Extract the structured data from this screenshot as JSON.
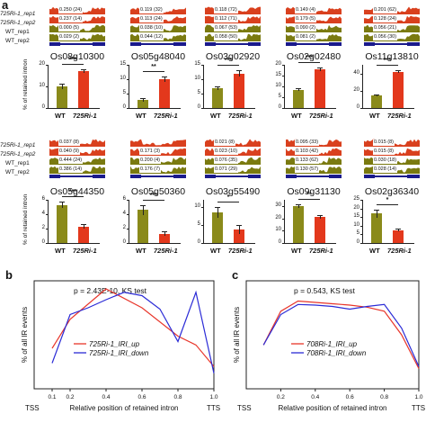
{
  "figure": {
    "panel_a_label": "a",
    "panel_b_label": "b",
    "panel_c_label": "c",
    "bar_ylabel": "% of retained intron",
    "line_ylabel": "% of all IR events",
    "xlabel": "Relative position of retained intron",
    "tss_label": "TSS",
    "tts_label": "TTS",
    "wt_label": "WT",
    "mut_label": "725Ri-1"
  },
  "track_labels_row1": [
    "725Ri-1_rep1",
    "725Ri-1_rep2",
    "WT_rep1",
    "WT_rep2"
  ],
  "track_labels_row2": [
    "725Ri-1_rep1",
    "725Ri-1_rep2",
    "WT_rep1",
    "WT_rep2"
  ],
  "genes": [
    {
      "name": "Os08g10300",
      "tags": [
        "0.250 (24)",
        "0.237 (14)",
        "0.000 (5)",
        "0.029 (2)"
      ],
      "wt": 10,
      "mut": 17,
      "wt_err": 1.2,
      "mut_err": 0.8,
      "ymax": 20,
      "ticks": [
        "0",
        "10",
        "20"
      ],
      "sig": "***"
    },
    {
      "name": "Os05g48040",
      "tags": [
        "0.119 (32)",
        "0.113 (24)",
        "0.038 (10)",
        "0.044 (12)"
      ],
      "wt": 2.8,
      "mut": 10,
      "wt_err": 0.6,
      "mut_err": 0.8,
      "ymax": 15,
      "ticks": [
        "0",
        "5",
        "10",
        "15"
      ],
      "sig": "**"
    },
    {
      "name": "Os03g02920",
      "tags": [
        "0.118 (72)",
        "0.112 (71)",
        "0.067 (53)",
        "0.058 (50)"
      ],
      "wt": 7,
      "mut": 12,
      "wt_err": 0.6,
      "mut_err": 1.2,
      "ymax": 15,
      "ticks": [
        "0",
        "5",
        "10",
        "15"
      ],
      "sig": "***"
    },
    {
      "name": "Os02g02480",
      "tags": [
        "0.149 (4)",
        "0.179 (5)",
        "0.090 (2)",
        "0.081 (2)"
      ],
      "wt": 8.5,
      "mut": 18,
      "wt_err": 0.5,
      "mut_err": 0.8,
      "ymax": 20,
      "ticks": [
        "0",
        "5",
        "10",
        "15",
        "20"
      ],
      "sig": "***"
    },
    {
      "name": "Os11g13810",
      "tags": [
        "0.201 (62)",
        "0.128 (24)",
        "0.056 (21)",
        "0.056 (30)"
      ],
      "wt": 15,
      "mut": 42,
      "wt_err": 1,
      "mut_err": 1.5,
      "ymax": 50,
      "ticks": [
        "0",
        "20",
        "40"
      ],
      "sig": "***"
    },
    {
      "name": "Os05g44350",
      "tags": [
        "0.037 (8)",
        "0.040 (9)",
        "0.444 (24)",
        "0.386 (14)"
      ],
      "wt": 5.3,
      "mut": 2.3,
      "wt_err": 0.4,
      "mut_err": 0.3,
      "ymax": 6,
      "ticks": [
        "0",
        "2",
        "4",
        "6"
      ],
      "sig": "***"
    },
    {
      "name": "Os05g50360",
      "tags": [
        "",
        "0.171 (3)",
        "0.200 (4)",
        "0.176 (7)"
      ],
      "wt": 4.6,
      "mut": 1.3,
      "wt_err": 0.7,
      "mut_err": 0.3,
      "ymax": 6,
      "ticks": [
        "0",
        "2",
        "4",
        "6"
      ],
      "sig": "***"
    },
    {
      "name": "Os03g55490",
      "tags": [
        "0.021 (8)",
        "0.023 (10)",
        "0.076 (35)",
        "0.071 (29)"
      ],
      "wt": 8.5,
      "mut": 3.7,
      "wt_err": 1.5,
      "mut_err": 1.2,
      "ymax": 12,
      "ticks": [
        "0",
        "5",
        "10"
      ],
      "sig": "*"
    },
    {
      "name": "Os09g31130",
      "tags": [
        "0.095 (33)",
        "0.103 (42)",
        "0.133 (62)",
        "0.130 (57)"
      ],
      "wt": 30,
      "mut": 21,
      "wt_err": 1.5,
      "mut_err": 1.5,
      "ymax": 35,
      "ticks": [
        "0",
        "10",
        "20",
        "30"
      ],
      "sig": "**"
    },
    {
      "name": "Os02g36340",
      "tags": [
        "0.015 (8)",
        "0.015 (8)",
        "0.030 (18)",
        "0.028 (14)"
      ],
      "wt": 17,
      "mut": 7.5,
      "wt_err": 2.5,
      "mut_err": 0.8,
      "ymax": 25,
      "ticks": [
        "0",
        "5",
        "10",
        "15",
        "20",
        "25"
      ],
      "sig": "*"
    }
  ],
  "chart_data": [
    {
      "type": "line",
      "panel": "b",
      "title": "p = 2.43E-10, KS test",
      "xlabel": "Relative position of retained intron",
      "ylabel": "% of all IR events",
      "xlim": [
        0,
        1
      ],
      "x_tick_labels": [
        "0.1",
        "0.2",
        "0.4",
        "0.6",
        "0.8",
        "1.0"
      ],
      "series": [
        {
          "name": "725Ri-1_IRI_up",
          "color": "#e8352a",
          "x": [
            0.1,
            0.2,
            0.4,
            0.6,
            0.8,
            0.9,
            1.0
          ],
          "y": [
            6.0,
            10.3,
            14.8,
            12.0,
            7.8,
            6.5,
            3.3
          ]
        },
        {
          "name": "725Ri-1_IRI_down",
          "color": "#2b2bd6",
          "x": [
            0.1,
            0.2,
            0.3,
            0.4,
            0.5,
            0.6,
            0.7,
            0.8,
            0.9,
            1.0
          ],
          "y": [
            3.8,
            11.0,
            12.0,
            13.2,
            14.3,
            13.8,
            11.8,
            7.0,
            14.3,
            2.3
          ]
        }
      ]
    },
    {
      "type": "line",
      "panel": "c",
      "title": "p = 0.543, KS test",
      "xlabel": "Relative position of retained intron",
      "ylabel": "% of all IR events",
      "xlim": [
        0,
        1
      ],
      "x_tick_labels": [
        "0.2",
        "0.4",
        "0.6",
        "0.8",
        "1.0"
      ],
      "series": [
        {
          "name": "708Ri-1_IRI_up",
          "color": "#e8352a",
          "x": [
            0.1,
            0.2,
            0.3,
            0.4,
            0.5,
            0.6,
            0.7,
            0.8,
            0.9,
            1.0
          ],
          "y": [
            6.5,
            11.5,
            13.0,
            12.8,
            12.6,
            12.4,
            12.1,
            11.5,
            8.0,
            3.0
          ]
        },
        {
          "name": "708Ri-1_IRI_down",
          "color": "#2b2bd6",
          "x": [
            0.1,
            0.2,
            0.3,
            0.4,
            0.5,
            0.6,
            0.7,
            0.8,
            0.9,
            1.0
          ],
          "y": [
            6.5,
            11.0,
            12.5,
            12.4,
            12.2,
            11.8,
            12.2,
            12.5,
            9.0,
            3.3
          ]
        }
      ]
    }
  ]
}
